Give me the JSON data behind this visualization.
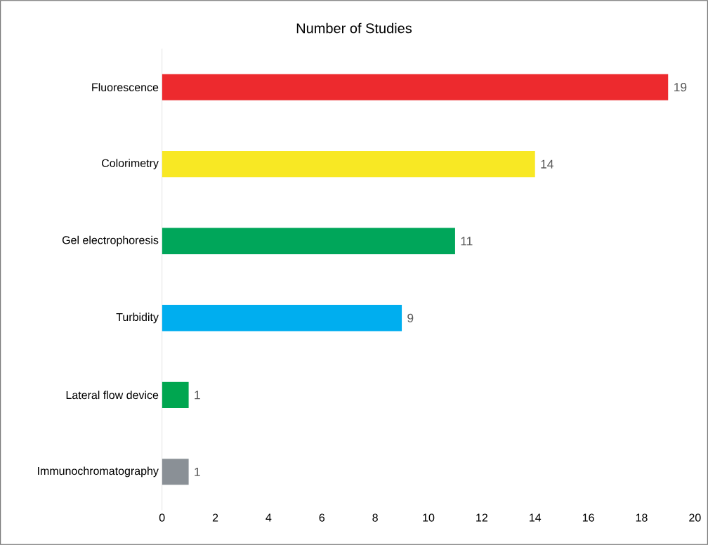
{
  "chart_data": {
    "type": "bar",
    "orientation": "horizontal",
    "title": "Number of Studies",
    "categories": [
      "Fluorescence",
      "Colorimetry",
      "Gel electrophoresis",
      "Turbidity",
      "Lateral flow device",
      "Immunochromatography"
    ],
    "values": [
      19,
      14,
      11,
      9,
      1,
      1
    ],
    "colors": [
      "#ed2a2e",
      "#f8e824",
      "#00a65a",
      "#00aeef",
      "#00a650",
      "#8a9096"
    ],
    "xlim": [
      0,
      20
    ],
    "xticks": [
      0,
      2,
      4,
      6,
      8,
      10,
      12,
      14,
      16,
      18,
      20
    ],
    "data_labels": true,
    "grid": false
  }
}
